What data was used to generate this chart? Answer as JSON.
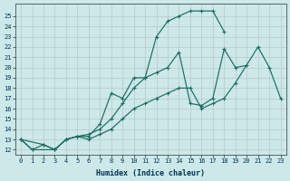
{
  "xlabel": "Humidex (Indice chaleur)",
  "background_color": "#cce8e8",
  "grid_color": "#b8c8c8",
  "line_color": "#1a6b60",
  "xlim": [
    -0.5,
    23.5
  ],
  "ylim": [
    11.5,
    26.2
  ],
  "xticks": [
    0,
    1,
    2,
    3,
    4,
    5,
    6,
    7,
    8,
    9,
    10,
    11,
    12,
    13,
    14,
    15,
    16,
    17,
    18,
    19,
    20,
    21,
    22,
    23
  ],
  "yticks": [
    12,
    13,
    14,
    15,
    16,
    17,
    18,
    19,
    20,
    21,
    22,
    23,
    24,
    25
  ],
  "line_top_x": [
    0,
    1,
    3,
    4,
    5,
    6,
    7,
    8,
    9,
    10,
    11,
    12,
    13,
    14,
    15,
    16,
    17,
    18
  ],
  "line_top_y": [
    13.0,
    12.0,
    12.0,
    13.0,
    13.3,
    13.3,
    14.5,
    17.5,
    17.0,
    19.0,
    19.0,
    23.0,
    24.5,
    25.0,
    25.5,
    25.5,
    25.5,
    23.5
  ],
  "line_mid_x": [
    0,
    1,
    2,
    3,
    4,
    5,
    6,
    7,
    8,
    9,
    10,
    11,
    12,
    13,
    14,
    15,
    16,
    17,
    18,
    19,
    20
  ],
  "line_mid_y": [
    13.0,
    12.0,
    12.5,
    12.0,
    13.0,
    13.3,
    13.5,
    14.0,
    15.0,
    16.5,
    18.0,
    19.0,
    19.5,
    20.0,
    21.5,
    16.5,
    16.3,
    17.0,
    21.8,
    20.0,
    20.2
  ],
  "line_bot_x": [
    0,
    2,
    3,
    4,
    5,
    6,
    7,
    8,
    9,
    10,
    11,
    12,
    13,
    14,
    15,
    16,
    17,
    18,
    19,
    21,
    22,
    23
  ],
  "line_bot_y": [
    13.0,
    12.5,
    12.0,
    13.0,
    13.3,
    13.0,
    13.5,
    14.0,
    15.0,
    16.0,
    16.5,
    17.0,
    17.5,
    18.0,
    18.0,
    16.0,
    16.5,
    17.0,
    18.5,
    22.0,
    20.0,
    17.0
  ]
}
